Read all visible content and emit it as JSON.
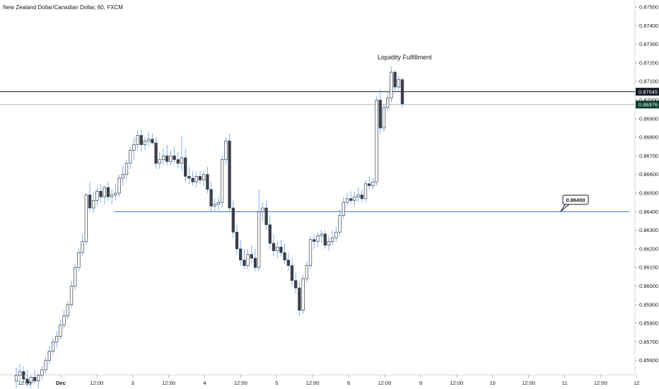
{
  "header": {
    "symbol_title": "New Zealand Dollar/Canadian Dollar, 60, FXCM"
  },
  "chart_data": {
    "type": "candlestick",
    "ylim": [
      0.855,
      0.875
    ],
    "y_ticks": [
      "0.85600",
      "0.85700",
      "0.85800",
      "0.85900",
      "0.86000",
      "0.86100",
      "0.86200",
      "0.86300",
      "0.86400",
      "0.86500",
      "0.86600",
      "0.86700",
      "0.86800",
      "0.86900",
      "0.87000",
      "0.87100",
      "0.87200",
      "0.87300",
      "0.87400",
      "0.87500"
    ],
    "x_ticks": [
      "12:00",
      "Dec",
      "12:00",
      "3",
      "12:00",
      "4",
      "12:00",
      "5",
      "12:00",
      "6",
      "12:00",
      "9",
      "12:00",
      "10",
      "12:00",
      "11",
      "12:00",
      "12"
    ],
    "horizontal_lines": [
      {
        "price": 0.87045,
        "label": "0.87045",
        "color": "#131722"
      },
      {
        "price": 0.86976,
        "label": "0.86976",
        "color": "#b2b5be"
      },
      {
        "price": 0.864,
        "label": "0.86400",
        "color": "#2962ff"
      }
    ],
    "current_price_badge": {
      "label": "0.86976",
      "color": "#0b3d2e"
    },
    "callout_label": "0.86400",
    "annotation": "Liquidity Fulfillment",
    "candles": [
      {
        "o": 0.8549,
        "h": 0.8556,
        "l": 0.8545,
        "c": 0.8552
      },
      {
        "o": 0.8552,
        "h": 0.8558,
        "l": 0.8549,
        "c": 0.8554
      },
      {
        "o": 0.8554,
        "h": 0.8557,
        "l": 0.8548,
        "c": 0.855
      },
      {
        "o": 0.855,
        "h": 0.8555,
        "l": 0.8546,
        "c": 0.8548
      },
      {
        "o": 0.8548,
        "h": 0.8552,
        "l": 0.8545,
        "c": 0.8551
      },
      {
        "o": 0.8551,
        "h": 0.8555,
        "l": 0.8547,
        "c": 0.8549
      },
      {
        "o": 0.8549,
        "h": 0.8553,
        "l": 0.8545,
        "c": 0.8552
      },
      {
        "o": 0.8552,
        "h": 0.8557,
        "l": 0.855,
        "c": 0.8555
      },
      {
        "o": 0.8555,
        "h": 0.8562,
        "l": 0.8553,
        "c": 0.856
      },
      {
        "o": 0.856,
        "h": 0.8568,
        "l": 0.8558,
        "c": 0.8565
      },
      {
        "o": 0.8565,
        "h": 0.8572,
        "l": 0.8563,
        "c": 0.857
      },
      {
        "o": 0.857,
        "h": 0.8576,
        "l": 0.8567,
        "c": 0.8573
      },
      {
        "o": 0.8573,
        "h": 0.8582,
        "l": 0.8571,
        "c": 0.8579
      },
      {
        "o": 0.8579,
        "h": 0.8587,
        "l": 0.8577,
        "c": 0.8584
      },
      {
        "o": 0.8584,
        "h": 0.8592,
        "l": 0.8582,
        "c": 0.859
      },
      {
        "o": 0.859,
        "h": 0.8603,
        "l": 0.8588,
        "c": 0.86
      },
      {
        "o": 0.86,
        "h": 0.8612,
        "l": 0.8598,
        "c": 0.861
      },
      {
        "o": 0.861,
        "h": 0.862,
        "l": 0.8608,
        "c": 0.8618
      },
      {
        "o": 0.8618,
        "h": 0.8628,
        "l": 0.8616,
        "c": 0.8624
      },
      {
        "o": 0.8624,
        "h": 0.865,
        "l": 0.8622,
        "c": 0.8649
      },
      {
        "o": 0.8649,
        "h": 0.8656,
        "l": 0.864,
        "c": 0.8642
      },
      {
        "o": 0.8642,
        "h": 0.865,
        "l": 0.8639,
        "c": 0.8646
      },
      {
        "o": 0.8646,
        "h": 0.8653,
        "l": 0.8643,
        "c": 0.8651
      },
      {
        "o": 0.8651,
        "h": 0.8655,
        "l": 0.8645,
        "c": 0.8648
      },
      {
        "o": 0.8648,
        "h": 0.8654,
        "l": 0.8644,
        "c": 0.8653
      },
      {
        "o": 0.8653,
        "h": 0.8656,
        "l": 0.8646,
        "c": 0.8648
      },
      {
        "o": 0.8648,
        "h": 0.8652,
        "l": 0.8644,
        "c": 0.8649
      },
      {
        "o": 0.8649,
        "h": 0.8655,
        "l": 0.8646,
        "c": 0.865
      },
      {
        "o": 0.865,
        "h": 0.866,
        "l": 0.8648,
        "c": 0.8658
      },
      {
        "o": 0.8658,
        "h": 0.8665,
        "l": 0.8654,
        "c": 0.866
      },
      {
        "o": 0.866,
        "h": 0.8668,
        "l": 0.8657,
        "c": 0.8666
      },
      {
        "o": 0.8666,
        "h": 0.8675,
        "l": 0.8663,
        "c": 0.8673
      },
      {
        "o": 0.8673,
        "h": 0.868,
        "l": 0.8668,
        "c": 0.8676
      },
      {
        "o": 0.8676,
        "h": 0.8684,
        "l": 0.8673,
        "c": 0.8681
      },
      {
        "o": 0.8681,
        "h": 0.8684,
        "l": 0.8672,
        "c": 0.8676
      },
      {
        "o": 0.8676,
        "h": 0.868,
        "l": 0.8673,
        "c": 0.8678
      },
      {
        "o": 0.8678,
        "h": 0.8683,
        "l": 0.8675,
        "c": 0.8679
      },
      {
        "o": 0.8679,
        "h": 0.8682,
        "l": 0.8676,
        "c": 0.8677
      },
      {
        "o": 0.8677,
        "h": 0.868,
        "l": 0.8663,
        "c": 0.8666
      },
      {
        "o": 0.8666,
        "h": 0.8672,
        "l": 0.8663,
        "c": 0.8668
      },
      {
        "o": 0.8668,
        "h": 0.8674,
        "l": 0.8665,
        "c": 0.867
      },
      {
        "o": 0.867,
        "h": 0.8676,
        "l": 0.8665,
        "c": 0.8667
      },
      {
        "o": 0.8667,
        "h": 0.8673,
        "l": 0.8665,
        "c": 0.867
      },
      {
        "o": 0.867,
        "h": 0.8675,
        "l": 0.8666,
        "c": 0.8668
      },
      {
        "o": 0.8668,
        "h": 0.8672,
        "l": 0.8663,
        "c": 0.8666
      },
      {
        "o": 0.8666,
        "h": 0.8681,
        "l": 0.8662,
        "c": 0.8669
      },
      {
        "o": 0.8669,
        "h": 0.8674,
        "l": 0.8656,
        "c": 0.8659
      },
      {
        "o": 0.8659,
        "h": 0.8664,
        "l": 0.8655,
        "c": 0.8658
      },
      {
        "o": 0.8658,
        "h": 0.8662,
        "l": 0.8654,
        "c": 0.8656
      },
      {
        "o": 0.8656,
        "h": 0.8662,
        "l": 0.8653,
        "c": 0.8659
      },
      {
        "o": 0.8659,
        "h": 0.8662,
        "l": 0.8655,
        "c": 0.8657
      },
      {
        "o": 0.8657,
        "h": 0.8662,
        "l": 0.8654,
        "c": 0.866
      },
      {
        "o": 0.866,
        "h": 0.8664,
        "l": 0.865,
        "c": 0.8652
      },
      {
        "o": 0.8652,
        "h": 0.8656,
        "l": 0.864,
        "c": 0.8643
      },
      {
        "o": 0.8643,
        "h": 0.8647,
        "l": 0.864,
        "c": 0.8644
      },
      {
        "o": 0.8644,
        "h": 0.8648,
        "l": 0.8641,
        "c": 0.8645
      },
      {
        "o": 0.8645,
        "h": 0.867,
        "l": 0.8642,
        "c": 0.8668
      },
      {
        "o": 0.8668,
        "h": 0.868,
        "l": 0.8665,
        "c": 0.8678
      },
      {
        "o": 0.8678,
        "h": 0.8682,
        "l": 0.864,
        "c": 0.8642
      },
      {
        "o": 0.8642,
        "h": 0.8646,
        "l": 0.8626,
        "c": 0.8629
      },
      {
        "o": 0.8629,
        "h": 0.8633,
        "l": 0.8617,
        "c": 0.862
      },
      {
        "o": 0.862,
        "h": 0.8625,
        "l": 0.8611,
        "c": 0.8614
      },
      {
        "o": 0.8614,
        "h": 0.862,
        "l": 0.8609,
        "c": 0.8611
      },
      {
        "o": 0.8611,
        "h": 0.862,
        "l": 0.8609,
        "c": 0.8617
      },
      {
        "o": 0.8617,
        "h": 0.8622,
        "l": 0.8612,
        "c": 0.8615
      },
      {
        "o": 0.8615,
        "h": 0.862,
        "l": 0.8608,
        "c": 0.861
      },
      {
        "o": 0.861,
        "h": 0.8652,
        "l": 0.8608,
        "c": 0.864
      },
      {
        "o": 0.864,
        "h": 0.8645,
        "l": 0.8635,
        "c": 0.8642
      },
      {
        "o": 0.8642,
        "h": 0.8646,
        "l": 0.863,
        "c": 0.8633
      },
      {
        "o": 0.8633,
        "h": 0.8638,
        "l": 0.862,
        "c": 0.8623
      },
      {
        "o": 0.8623,
        "h": 0.8628,
        "l": 0.8616,
        "c": 0.8619
      },
      {
        "o": 0.8619,
        "h": 0.8624,
        "l": 0.8615,
        "c": 0.8621
      },
      {
        "o": 0.8621,
        "h": 0.8625,
        "l": 0.8616,
        "c": 0.8618
      },
      {
        "o": 0.8618,
        "h": 0.8623,
        "l": 0.8612,
        "c": 0.8614
      },
      {
        "o": 0.8614,
        "h": 0.8618,
        "l": 0.8608,
        "c": 0.8611
      },
      {
        "o": 0.8611,
        "h": 0.8615,
        "l": 0.86,
        "c": 0.8603
      },
      {
        "o": 0.8603,
        "h": 0.8607,
        "l": 0.8596,
        "c": 0.8599
      },
      {
        "o": 0.8599,
        "h": 0.8602,
        "l": 0.8584,
        "c": 0.8587
      },
      {
        "o": 0.8587,
        "h": 0.8606,
        "l": 0.8585,
        "c": 0.8604
      },
      {
        "o": 0.8604,
        "h": 0.8613,
        "l": 0.8602,
        "c": 0.8611
      },
      {
        "o": 0.8611,
        "h": 0.8627,
        "l": 0.8609,
        "c": 0.8625
      },
      {
        "o": 0.8625,
        "h": 0.8628,
        "l": 0.862,
        "c": 0.8624
      },
      {
        "o": 0.8624,
        "h": 0.8629,
        "l": 0.8621,
        "c": 0.8627
      },
      {
        "o": 0.8627,
        "h": 0.863,
        "l": 0.8623,
        "c": 0.8628
      },
      {
        "o": 0.8628,
        "h": 0.863,
        "l": 0.862,
        "c": 0.8622
      },
      {
        "o": 0.8622,
        "h": 0.8627,
        "l": 0.8619,
        "c": 0.8624
      },
      {
        "o": 0.8624,
        "h": 0.863,
        "l": 0.8622,
        "c": 0.8626
      },
      {
        "o": 0.8626,
        "h": 0.8632,
        "l": 0.8624,
        "c": 0.8629
      },
      {
        "o": 0.8629,
        "h": 0.8641,
        "l": 0.8627,
        "c": 0.8638
      },
      {
        "o": 0.8638,
        "h": 0.8648,
        "l": 0.8636,
        "c": 0.8645
      },
      {
        "o": 0.8645,
        "h": 0.865,
        "l": 0.8643,
        "c": 0.8647
      },
      {
        "o": 0.8647,
        "h": 0.8651,
        "l": 0.8644,
        "c": 0.8646
      },
      {
        "o": 0.8646,
        "h": 0.8651,
        "l": 0.8643,
        "c": 0.8648
      },
      {
        "o": 0.8648,
        "h": 0.8653,
        "l": 0.8645,
        "c": 0.8649
      },
      {
        "o": 0.8649,
        "h": 0.8652,
        "l": 0.8645,
        "c": 0.8647
      },
      {
        "o": 0.8647,
        "h": 0.8657,
        "l": 0.8645,
        "c": 0.8655
      },
      {
        "o": 0.8655,
        "h": 0.8659,
        "l": 0.8652,
        "c": 0.8654
      },
      {
        "o": 0.8654,
        "h": 0.8658,
        "l": 0.8652,
        "c": 0.8656
      },
      {
        "o": 0.8656,
        "h": 0.8702,
        "l": 0.8654,
        "c": 0.87
      },
      {
        "o": 0.87,
        "h": 0.8706,
        "l": 0.8682,
        "c": 0.8685
      },
      {
        "o": 0.8685,
        "h": 0.8698,
        "l": 0.8683,
        "c": 0.8696
      },
      {
        "o": 0.8696,
        "h": 0.8704,
        "l": 0.8694,
        "c": 0.8701
      },
      {
        "o": 0.8701,
        "h": 0.8718,
        "l": 0.8699,
        "c": 0.8715
      },
      {
        "o": 0.8715,
        "h": 0.8716,
        "l": 0.8704,
        "c": 0.8707
      },
      {
        "o": 0.8707,
        "h": 0.8713,
        "l": 0.8705,
        "c": 0.8711
      },
      {
        "o": 0.8711,
        "h": 0.8712,
        "l": 0.8696,
        "c": 0.8698
      }
    ]
  }
}
